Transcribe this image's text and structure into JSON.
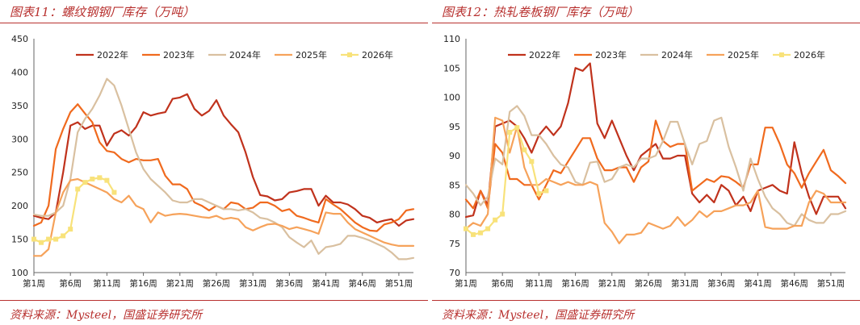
{
  "charts": [
    {
      "figure_title": "图表11：螺纹钢钢厂库存（万吨）",
      "source": "资料来源：Mysteel，国盛证券研究所"
    },
    {
      "figure_title": "图表12：热轧卷板钢厂库存（万吨）",
      "source": "资料来源：Mysteel，国盛证券研究所"
    }
  ],
  "colors": {
    "accent": "#b8312f",
    "s2022": "#c0321c",
    "s2023": "#f06a1e",
    "s2024": "#d9c0a0",
    "s2025": "#f6a25a",
    "s2026": "#f8e27a"
  },
  "chart_data": [
    {
      "type": "line",
      "title": "螺纹钢钢厂库存（万吨）",
      "ylim": [
        100,
        450
      ],
      "yticks": [
        100,
        150,
        200,
        250,
        300,
        350,
        400,
        450
      ],
      "xlim": [
        1,
        53
      ],
      "xticks": [
        1,
        6,
        11,
        16,
        21,
        26,
        31,
        36,
        41,
        46,
        51
      ],
      "xtick_labels": [
        "第1周",
        "第6周",
        "第11周",
        "第16周",
        "第21周",
        "第26周",
        "第31周",
        "第36周",
        "第41周",
        "第46周",
        "第51周"
      ],
      "legend": "top",
      "series": [
        {
          "name": "2022年",
          "color": "#c0321c",
          "values": [
            185,
            182,
            180,
            190,
            250,
            320,
            325,
            315,
            320,
            320,
            290,
            308,
            313,
            305,
            318,
            340,
            335,
            338,
            340,
            360,
            362,
            367,
            345,
            335,
            342,
            358,
            335,
            322,
            310,
            280,
            243,
            216,
            214,
            208,
            210,
            220,
            222,
            225,
            225,
            200,
            215,
            205,
            205,
            202,
            195,
            185,
            182,
            175,
            178,
            180,
            170,
            178,
            180
          ]
        },
        {
          "name": "2023年",
          "color": "#f06a1e",
          "values": [
            170,
            175,
            200,
            285,
            315,
            340,
            352,
            338,
            325,
            295,
            282,
            280,
            270,
            265,
            270,
            268,
            268,
            270,
            245,
            232,
            232,
            225,
            205,
            200,
            193,
            200,
            195,
            205,
            203,
            195,
            197,
            205,
            205,
            200,
            192,
            195,
            185,
            182,
            178,
            175,
            210,
            202,
            195,
            185,
            175,
            168,
            163,
            162,
            172,
            175,
            180,
            193,
            195
          ]
        },
        {
          "name": "2024年",
          "color": "#d9c0a0",
          "values": [
            187,
            185,
            185,
            190,
            200,
            240,
            310,
            330,
            345,
            365,
            390,
            380,
            350,
            315,
            280,
            255,
            240,
            230,
            220,
            208,
            205,
            205,
            210,
            210,
            205,
            200,
            195,
            195,
            193,
            195,
            190,
            182,
            180,
            175,
            168,
            153,
            145,
            138,
            148,
            128,
            138,
            140,
            143,
            155,
            155,
            152,
            148,
            143,
            138,
            130,
            120,
            120,
            122
          ]
        },
        {
          "name": "2025年",
          "color": "#f6a25a",
          "values": [
            125,
            125,
            135,
            190,
            220,
            238,
            240,
            235,
            230,
            225,
            220,
            210,
            205,
            215,
            200,
            195,
            175,
            190,
            185,
            187,
            188,
            187,
            185,
            183,
            182,
            185,
            180,
            182,
            180,
            168,
            163,
            168,
            172,
            173,
            170,
            165,
            168,
            165,
            162,
            158,
            190,
            188,
            188,
            175,
            165,
            160,
            155,
            150,
            145,
            142,
            140,
            140,
            140
          ]
        },
        {
          "name": "2026年",
          "color": "#f8e27a",
          "values": [
            150,
            145,
            150,
            150,
            155,
            165,
            225,
            235,
            240,
            242,
            238,
            220
          ]
        }
      ]
    },
    {
      "type": "line",
      "title": "热轧卷板钢厂库存（万吨）",
      "ylim": [
        70,
        110
      ],
      "yticks": [
        70,
        75,
        80,
        85,
        90,
        95,
        100,
        105,
        110
      ],
      "xlim": [
        1,
        53
      ],
      "xticks": [
        1,
        6,
        11,
        16,
        21,
        26,
        31,
        36,
        41,
        46,
        51
      ],
      "xtick_labels": [
        "第1周",
        "第6周",
        "第11周",
        "第16周",
        "第21周",
        "第26周",
        "第31周",
        "第36周",
        "第41周",
        "第46周",
        "第51周"
      ],
      "legend": "top",
      "series": [
        {
          "name": "2022年",
          "color": "#c0321c",
          "values": [
            79.5,
            79.8,
            84,
            81.5,
            95,
            95.5,
            96,
            95,
            93,
            90.5,
            93.5,
            95,
            93.5,
            95,
            99,
            105,
            104.5,
            105.8,
            95.5,
            93,
            96,
            93,
            90,
            87.5,
            90,
            91,
            92,
            89.5,
            89.5,
            90,
            90,
            83.5,
            82,
            83.3,
            82,
            85,
            84,
            81.5,
            83,
            80.5,
            84,
            84.5,
            85,
            84,
            83.5,
            92.3,
            87,
            83,
            80,
            83,
            83,
            83,
            81
          ]
        },
        {
          "name": "2023年",
          "color": "#f06a1e",
          "values": [
            82.5,
            81,
            84,
            81,
            92,
            90.5,
            86,
            86,
            85,
            85,
            82.5,
            85,
            87.5,
            87,
            89,
            91,
            93,
            93,
            89.5,
            87.5,
            87.5,
            88,
            88,
            85.5,
            88,
            89,
            96,
            92.5,
            91.5,
            92,
            92,
            84,
            85,
            86,
            85.5,
            86.5,
            86.3,
            85.5,
            84.5,
            88.5,
            88.5,
            94.8,
            94.8,
            92,
            88.5,
            87,
            84.5,
            87,
            89,
            91,
            87.5,
            86.5,
            85.3
          ]
        },
        {
          "name": "2024年",
          "color": "#d9c0a0",
          "values": [
            85,
            83.5,
            81.5,
            83,
            89.5,
            88.5,
            97.5,
            98.5,
            96.8,
            93.5,
            93.5,
            92,
            90,
            88.5,
            88,
            85.5,
            85,
            88.8,
            89,
            85.5,
            86,
            88,
            88.5,
            88,
            89.5,
            89.5,
            90,
            92.5,
            95.8,
            95.8,
            92,
            88.5,
            92,
            92.5,
            96,
            96.5,
            91.5,
            88,
            84,
            89.5,
            86,
            83,
            81,
            80,
            78.5,
            78,
            80,
            79,
            78.5,
            78.5,
            80,
            80,
            80.5
          ]
        },
        {
          "name": "2025年",
          "color": "#f6a25a",
          "values": [
            77.5,
            78.5,
            78,
            80,
            96.5,
            96,
            90.5,
            95,
            88,
            85,
            85,
            86,
            85.5,
            85,
            85.5,
            85,
            85,
            85.5,
            85,
            78.5,
            77,
            75,
            76.5,
            76.5,
            76.8,
            78.5,
            78,
            77.5,
            78,
            79.5,
            78,
            79,
            80.5,
            79.5,
            80.5,
            80.5,
            81,
            81.5,
            81.5,
            82,
            84,
            77.8,
            77.5,
            77.5,
            77.5,
            78,
            78,
            82,
            84,
            83.5,
            82,
            82,
            82
          ]
        },
        {
          "name": "2026年",
          "color": "#f8e27a",
          "values": [
            77.5,
            76.5,
            76.8,
            77.5,
            79,
            80,
            94,
            94.8,
            91,
            89,
            83.5,
            84
          ]
        }
      ]
    }
  ]
}
